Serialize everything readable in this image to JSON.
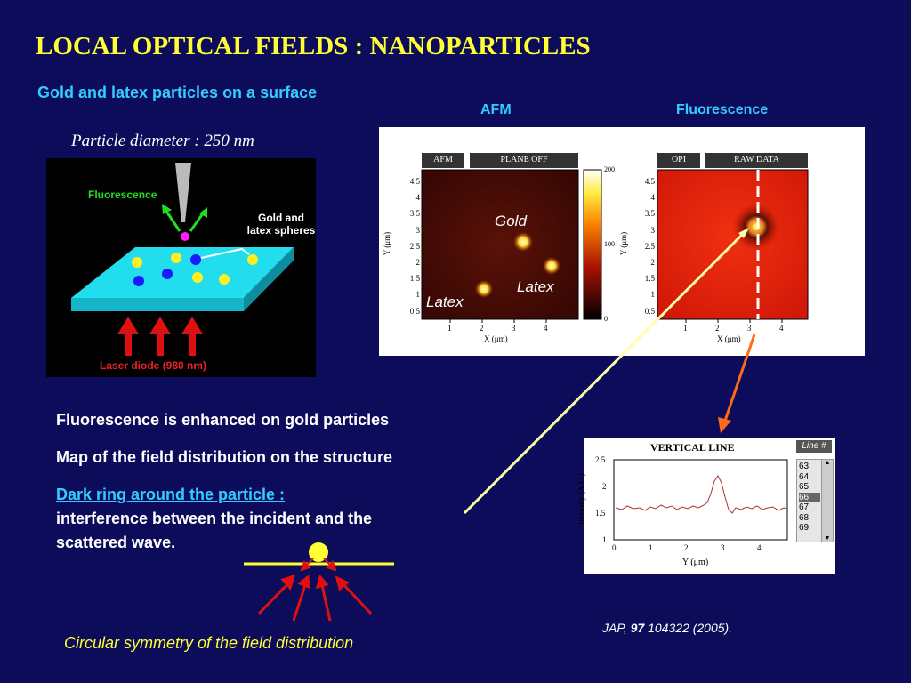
{
  "slide": {
    "title": "LOCAL OPTICAL FIELDS : NANOPARTICLES",
    "subtitle": "Gold and latex particles on a surface",
    "afm_header": "AFM",
    "fluo_header": "Fluorescence",
    "particle_diameter": "Particle diameter : 250 nm"
  },
  "schematic": {
    "fluorescence_label": "Fluorescence",
    "spheres_label_1": "Gold and",
    "spheres_label_2": "latex spheres",
    "laser_label": "Laser diode (980 nm)"
  },
  "afm_image": {
    "tab1": "AFM",
    "tab2": "PLANE OFF",
    "y_ticks": [
      "4.5",
      "4",
      "3.5",
      "3",
      "2.5",
      "2",
      "1.5",
      "1",
      "0.5"
    ],
    "x_ticks": [
      "1",
      "2",
      "3",
      "4"
    ],
    "x_label": "X (μm)",
    "y_label": "Y (μm)",
    "colorbar_ticks": [
      "200",
      "100",
      "0"
    ],
    "label_gold": "Gold",
    "label_latex_right": "Latex",
    "label_latex_left": "Latex"
  },
  "fluo_image": {
    "tab1": "OPI",
    "tab2": "RAW DATA",
    "y_ticks": [
      "4.5",
      "4",
      "3.5",
      "3",
      "2.5",
      "2",
      "1.5",
      "1",
      "0.5"
    ],
    "x_ticks": [
      "1",
      "2",
      "3",
      "4"
    ],
    "x_label": "X (μm)",
    "y_label": "Y (μm)"
  },
  "profile": {
    "title": "VERTICAL LINE",
    "line_header": "Line #",
    "line_items": [
      "63",
      "64",
      "65",
      "66",
      "67",
      "68",
      "69"
    ],
    "selected_line": "66",
    "y_ticks": [
      "2.5",
      "2",
      "1.5",
      "1"
    ],
    "x_ticks": [
      "0",
      "1",
      "2",
      "3",
      "4"
    ],
    "x_label": "Y (μm)",
    "y_label": "Intensity (A.U.)"
  },
  "bullets": {
    "b1": "Fluorescence is enhanced on gold particles",
    "b2": "Map of the field distribution on the structure",
    "b3_link": "Dark ring around the particle :",
    "b3_line1": "interference between the incident and the",
    "b3_line2": "scattered wave."
  },
  "citation": {
    "prefix": "JAP, ",
    "volume": "97",
    "rest": " 104322 (2005)."
  },
  "caption": "Circular symmetry of the field distribution",
  "colors": {
    "background": "#0c0c5a",
    "title": "#ffff33",
    "accent": "#33ccff",
    "arrow_red": "#e01010",
    "connector_yellow": "#ffffaa",
    "connector_orange": "#ff6a1a"
  }
}
